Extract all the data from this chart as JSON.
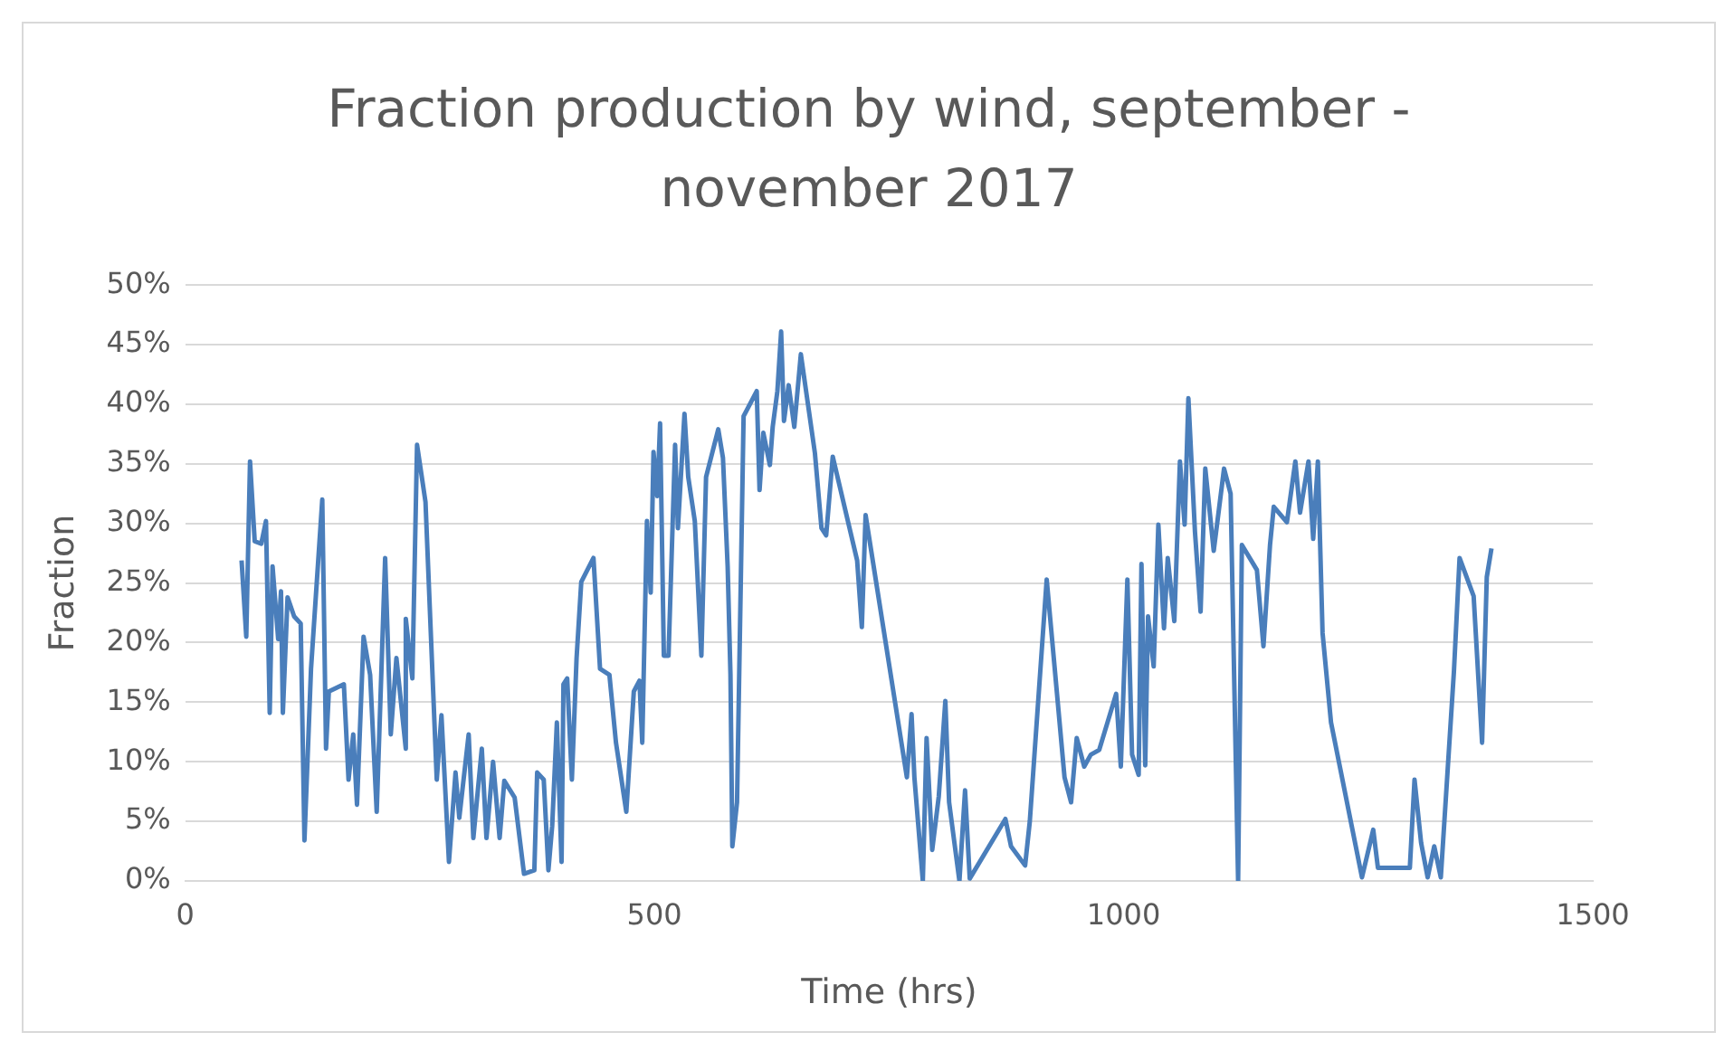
{
  "chart_data": {
    "type": "line",
    "title": "Fraction production by wind, september - november 2017",
    "xlabel": "Time (hrs)",
    "ylabel": "Fraction",
    "xlim": [
      0,
      1500
    ],
    "xticks": [
      0,
      500,
      1000,
      1500
    ],
    "ylim": [
      0,
      50
    ],
    "yticks": [
      {
        "value": 0,
        "label": "0%"
      },
      {
        "value": 5,
        "label": "5%"
      },
      {
        "value": 10,
        "label": "10%"
      },
      {
        "value": 15,
        "label": "15%"
      },
      {
        "value": 20,
        "label": "20%"
      },
      {
        "value": 25,
        "label": "25%"
      },
      {
        "value": 30,
        "label": "30%"
      },
      {
        "value": 35,
        "label": "35%"
      },
      {
        "value": 40,
        "label": "40%"
      },
      {
        "value": 45,
        "label": "45%"
      },
      {
        "value": 50,
        "label": "50%"
      }
    ],
    "grid": "y",
    "legend": false,
    "marker": "none",
    "line_style": "solid",
    "series": [
      {
        "color": "#4a7ebb",
        "x": [
          60,
          65,
          69,
          74,
          81,
          86,
          90,
          93,
          99,
          102,
          104,
          109,
          116,
          123,
          127,
          134,
          146,
          150,
          153,
          169,
          174,
          179,
          183,
          190,
          197,
          204,
          213,
          219,
          225,
          235,
          235,
          242,
          247,
          256,
          268,
          273,
          281,
          288,
          292,
          302,
          307,
          316,
          321,
          328,
          335,
          340,
          351,
          361,
          372,
          375,
          382,
          387,
          391,
          396,
          401,
          403,
          407,
          412,
          417,
          422,
          435,
          442,
          452,
          459,
          470,
          478,
          484,
          487,
          492,
          496,
          499,
          503,
          506,
          510,
          515,
          522,
          525,
          532,
          536,
          543,
          550,
          555,
          568,
          573,
          578,
          581,
          583,
          588,
          595,
          609,
          612,
          616,
          623,
          626,
          631,
          635,
          638,
          643,
          649,
          656,
          671,
          678,
          683,
          690,
          716,
          721,
          725,
          769,
          774,
          777,
          786,
          790,
          796,
          803,
          810,
          814,
          825,
          831,
          836,
          874,
          880,
          895,
          900,
          918,
          937,
          944,
          950,
          958,
          965,
          974,
          992,
          997,
          1004,
          1009,
          1016,
          1019,
          1023,
          1026,
          1032,
          1037,
          1043,
          1047,
          1054,
          1060,
          1065,
          1069,
          1076,
          1082,
          1087,
          1096,
          1107,
          1114,
          1122,
          1126,
          1142,
          1149,
          1156,
          1160,
          1174,
          1183,
          1188,
          1197,
          1202,
          1207,
          1212,
          1221,
          1254,
          1266,
          1271,
          1305,
          1310,
          1317,
          1324,
          1331,
          1338,
          1352,
          1358,
          1373,
          1382,
          1387,
          1392
        ],
        "values": [
          26.9,
          20.5,
          35.2,
          28.5,
          28.3,
          30.2,
          14.1,
          26.4,
          20.3,
          24.3,
          14.1,
          23.8,
          22.2,
          21.6,
          3.4,
          17.8,
          32,
          11.1,
          15.9,
          16.5,
          8.5,
          12.3,
          6.4,
          20.5,
          17.3,
          5.8,
          27.1,
          12.3,
          18.7,
          11.1,
          22,
          17,
          36.6,
          31.8,
          8.5,
          13.9,
          1.6,
          9.1,
          5.3,
          12.3,
          3.6,
          11.1,
          3.6,
          10,
          3.6,
          8.4,
          7,
          0.6,
          0.9,
          9.1,
          8.5,
          0.9,
          4.6,
          13.3,
          1.6,
          16.5,
          17,
          8.5,
          18.7,
          25.1,
          27.1,
          17.8,
          17.3,
          11.6,
          5.8,
          15.9,
          16.8,
          11.6,
          30.2,
          24.2,
          36,
          32.3,
          38.4,
          18.9,
          18.9,
          36.6,
          29.6,
          39.2,
          33.9,
          30.2,
          18.9,
          33.9,
          37.9,
          35.5,
          26.4,
          17.3,
          2.9,
          6.6,
          39,
          41.1,
          32.8,
          37.6,
          34.9,
          38.1,
          41.1,
          46.1,
          38.6,
          41.6,
          38.1,
          44.2,
          35.9,
          29.6,
          29,
          35.6,
          26.9,
          21.3,
          30.7,
          8.7,
          14,
          8.7,
          0,
          12,
          2.6,
          7.1,
          15.1,
          6.6,
          0,
          7.6,
          0.2,
          5.2,
          2.9,
          1.3,
          5,
          25.3,
          8.7,
          6.6,
          12,
          9.6,
          10.6,
          11,
          15.7,
          9.6,
          25.3,
          10.6,
          8.9,
          26.6,
          9.7,
          22.2,
          18,
          29.9,
          21.2,
          27.1,
          21.8,
          35.2,
          29.9,
          40.5,
          29.3,
          22.6,
          34.6,
          27.7,
          34.6,
          32.5,
          0,
          28.2,
          26.1,
          19.7,
          28.2,
          31.4,
          30.1,
          35.2,
          30.9,
          35.2,
          28.7,
          35.2,
          20.8,
          13.3,
          0.3,
          4.3,
          1.1,
          1.1,
          8.5,
          3.2,
          0.3,
          2.9,
          0.3,
          17.6,
          27.1,
          23.9,
          11.6,
          25.5,
          27.9
        ]
      }
    ]
  }
}
